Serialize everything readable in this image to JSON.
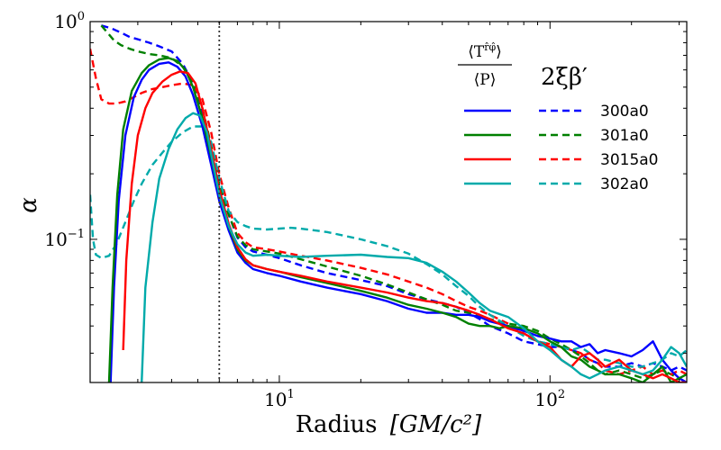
{
  "chart_data": {
    "type": "line",
    "title": "",
    "xlabel": "Radius",
    "xlabel_units": "[GM/c²]",
    "ylabel": "α",
    "xscale": "log",
    "yscale": "log",
    "xlim": [
      2.0,
      320
    ],
    "ylim": [
      0.022,
      1.0
    ],
    "x_ticks": [
      {
        "value": 10,
        "base": "10",
        "exp": "1"
      },
      {
        "value": 100,
        "base": "10",
        "exp": "2"
      }
    ],
    "y_ticks": [
      {
        "value": 0.1,
        "base": "10",
        "exp": "−1"
      },
      {
        "value": 1.0,
        "base": "10",
        "exp": "0"
      }
    ],
    "vline": {
      "x": 6.0,
      "style": "dotted",
      "color": "#333333"
    },
    "legend": {
      "position": "top-right",
      "solid_header": "⟨T^{r̂φ̂}⟩ / ⟨P⟩",
      "solid_header_num": "⟨T",
      "solid_header_sup": "r̂φ̂",
      "solid_header_close": "⟩",
      "solid_header_den": "⟨P⟩",
      "dashed_header": "2ξβ′",
      "entries": [
        "300a0",
        "301a0",
        "3015a0",
        "302a0"
      ]
    },
    "series": [
      {
        "name": "300a0 solid",
        "run": "300a0",
        "style": "solid",
        "color": "#0000ff",
        "x": [
          2.38,
          2.45,
          2.55,
          2.7,
          2.9,
          3.1,
          3.3,
          3.6,
          3.9,
          4.2,
          4.5,
          4.8,
          5.2,
          5.6,
          6.0,
          6.5,
          7.0,
          7.5,
          8.0,
          9,
          10,
          12,
          15,
          20,
          25,
          30,
          35,
          40,
          45,
          50,
          55,
          60,
          70,
          80,
          90,
          100,
          110,
          120,
          130,
          140,
          150,
          160,
          180,
          200,
          220,
          240,
          260,
          280,
          300,
          320
        ],
        "y": [
          0.022,
          0.06,
          0.15,
          0.3,
          0.45,
          0.54,
          0.6,
          0.64,
          0.65,
          0.62,
          0.56,
          0.46,
          0.33,
          0.22,
          0.15,
          0.11,
          0.087,
          0.078,
          0.073,
          0.07,
          0.068,
          0.064,
          0.06,
          0.056,
          0.052,
          0.048,
          0.046,
          0.046,
          0.045,
          0.045,
          0.044,
          0.042,
          0.04,
          0.038,
          0.036,
          0.035,
          0.034,
          0.034,
          0.032,
          0.033,
          0.03,
          0.031,
          0.03,
          0.029,
          0.031,
          0.034,
          0.028,
          0.025,
          0.023,
          0.022
        ]
      },
      {
        "name": "301a0 solid",
        "run": "301a0",
        "style": "solid",
        "color": "#008000",
        "x": [
          2.35,
          2.42,
          2.52,
          2.65,
          2.85,
          3.1,
          3.3,
          3.6,
          3.9,
          4.2,
          4.5,
          4.8,
          5.2,
          5.6,
          6.0,
          6.5,
          7.0,
          7.5,
          8.0,
          9,
          10,
          12,
          15,
          20,
          25,
          30,
          35,
          40,
          45,
          50,
          55,
          60,
          65,
          70,
          80,
          90,
          100,
          110,
          120,
          130,
          140,
          150,
          160,
          180,
          200,
          220,
          240,
          260,
          280,
          300,
          320
        ],
        "y": [
          0.022,
          0.06,
          0.16,
          0.32,
          0.48,
          0.58,
          0.63,
          0.67,
          0.68,
          0.66,
          0.6,
          0.5,
          0.36,
          0.24,
          0.16,
          0.115,
          0.09,
          0.08,
          0.076,
          0.073,
          0.071,
          0.067,
          0.063,
          0.058,
          0.054,
          0.05,
          0.048,
          0.046,
          0.044,
          0.041,
          0.04,
          0.04,
          0.039,
          0.04,
          0.039,
          0.037,
          0.034,
          0.032,
          0.029,
          0.028,
          0.026,
          0.025,
          0.024,
          0.024,
          0.023,
          0.022,
          0.024,
          0.026,
          0.022,
          0.023,
          0.024
        ]
      },
      {
        "name": "3015a0 solid",
        "run": "3015a0",
        "style": "solid",
        "color": "#ff0000",
        "x": [
          2.65,
          2.72,
          2.85,
          3.0,
          3.2,
          3.4,
          3.7,
          4.0,
          4.3,
          4.6,
          4.9,
          5.2,
          5.6,
          6.0,
          6.5,
          7.0,
          7.5,
          8.0,
          9,
          10,
          12,
          15,
          20,
          25,
          30,
          35,
          40,
          45,
          50,
          55,
          60,
          70,
          80,
          90,
          100,
          110,
          120,
          130,
          140,
          150,
          160,
          180,
          200,
          220,
          240,
          260,
          280,
          300,
          320
        ],
        "y": [
          0.031,
          0.08,
          0.18,
          0.3,
          0.4,
          0.47,
          0.53,
          0.57,
          0.59,
          0.58,
          0.52,
          0.4,
          0.26,
          0.17,
          0.118,
          0.092,
          0.081,
          0.076,
          0.073,
          0.071,
          0.068,
          0.064,
          0.06,
          0.057,
          0.054,
          0.052,
          0.051,
          0.049,
          0.047,
          0.045,
          0.043,
          0.039,
          0.037,
          0.034,
          0.032,
          0.028,
          0.026,
          0.029,
          0.03,
          0.028,
          0.026,
          0.028,
          0.025,
          0.024,
          0.023,
          0.024,
          0.023,
          0.022,
          0.022
        ]
      },
      {
        "name": "302a0 solid",
        "run": "302a0",
        "style": "solid",
        "color": "#00aaaa",
        "x": [
          3.1,
          3.2,
          3.4,
          3.6,
          3.9,
          4.2,
          4.5,
          4.8,
          5.1,
          5.4,
          5.7,
          6.0,
          6.5,
          7.0,
          7.5,
          8.0,
          9,
          10,
          12,
          15,
          20,
          25,
          30,
          35,
          40,
          45,
          50,
          55,
          60,
          70,
          80,
          90,
          100,
          110,
          120,
          130,
          140,
          150,
          160,
          180,
          200,
          220,
          240,
          260,
          280,
          300,
          320
        ],
        "y": [
          0.022,
          0.06,
          0.12,
          0.19,
          0.26,
          0.32,
          0.36,
          0.38,
          0.37,
          0.31,
          0.22,
          0.16,
          0.115,
          0.095,
          0.087,
          0.084,
          0.085,
          0.084,
          0.083,
          0.084,
          0.085,
          0.083,
          0.082,
          0.078,
          0.071,
          0.064,
          0.057,
          0.051,
          0.047,
          0.044,
          0.039,
          0.034,
          0.031,
          0.028,
          0.026,
          0.024,
          0.023,
          0.024,
          0.025,
          0.026,
          0.025,
          0.024,
          0.025,
          0.028,
          0.032,
          0.03,
          0.026
        ]
      },
      {
        "name": "300a0 dashed",
        "run": "300a0",
        "style": "dashed",
        "color": "#0000ff",
        "x": [
          2.2,
          2.4,
          2.6,
          2.8,
          3.0,
          3.3,
          3.6,
          4.0,
          4.4,
          4.8,
          5.2,
          5.6,
          6.0,
          6.5,
          7.0,
          7.5,
          8.0,
          9,
          10,
          12,
          15,
          20,
          25,
          30,
          35,
          40,
          45,
          50,
          55,
          60,
          70,
          80,
          90,
          100,
          110,
          120,
          130,
          140,
          150,
          160,
          180,
          200,
          220,
          240,
          260,
          280,
          300,
          320
        ],
        "y": [
          0.96,
          0.93,
          0.89,
          0.85,
          0.83,
          0.8,
          0.77,
          0.73,
          0.64,
          0.52,
          0.38,
          0.26,
          0.18,
          0.13,
          0.102,
          0.092,
          0.088,
          0.085,
          0.082,
          0.076,
          0.07,
          0.065,
          0.061,
          0.056,
          0.053,
          0.051,
          0.049,
          0.046,
          0.043,
          0.04,
          0.037,
          0.034,
          0.033,
          0.032,
          0.032,
          0.031,
          0.03,
          0.028,
          0.027,
          0.026,
          0.026,
          0.027,
          0.026,
          0.027,
          0.026,
          0.025,
          0.026,
          0.025
        ]
      },
      {
        "name": "301a0 dashed",
        "run": "301a0",
        "style": "dashed",
        "color": "#008000",
        "x": [
          2.2,
          2.3,
          2.45,
          2.6,
          2.8,
          3.0,
          3.3,
          3.6,
          4.0,
          4.4,
          4.8,
          5.2,
          5.6,
          6.0,
          6.5,
          7.0,
          7.5,
          8.0,
          9,
          10,
          12,
          15,
          20,
          25,
          30,
          35,
          40,
          45,
          50,
          55,
          60,
          70,
          80,
          90,
          100,
          110,
          120,
          130,
          140,
          150,
          160,
          180,
          200,
          220,
          240,
          260,
          280,
          300,
          320
        ],
        "y": [
          0.96,
          0.9,
          0.82,
          0.78,
          0.75,
          0.73,
          0.71,
          0.7,
          0.68,
          0.62,
          0.52,
          0.4,
          0.27,
          0.18,
          0.13,
          0.103,
          0.094,
          0.09,
          0.088,
          0.086,
          0.081,
          0.075,
          0.068,
          0.062,
          0.057,
          0.053,
          0.05,
          0.047,
          0.046,
          0.044,
          0.043,
          0.041,
          0.04,
          0.038,
          0.035,
          0.033,
          0.031,
          0.029,
          0.027,
          0.025,
          0.024,
          0.025,
          0.024,
          0.023,
          0.024,
          0.025,
          0.024,
          0.023,
          0.022
        ]
      },
      {
        "name": "3015a0 dashed",
        "run": "3015a0",
        "style": "dashed",
        "color": "#ff0000",
        "x": [
          2.0,
          2.1,
          2.2,
          2.35,
          2.5,
          2.7,
          2.9,
          3.1,
          3.4,
          3.7,
          4.0,
          4.4,
          4.8,
          5.2,
          5.6,
          6.0,
          6.5,
          7.0,
          7.5,
          8.0,
          9,
          10,
          12,
          15,
          20,
          25,
          30,
          35,
          40,
          45,
          50,
          55,
          60,
          70,
          80,
          90,
          100,
          110,
          120,
          130,
          140,
          150,
          160,
          180,
          200,
          220,
          240,
          260,
          280,
          300,
          320
        ],
        "y": [
          0.75,
          0.55,
          0.44,
          0.42,
          0.42,
          0.43,
          0.45,
          0.47,
          0.49,
          0.5,
          0.51,
          0.52,
          0.51,
          0.44,
          0.31,
          0.2,
          0.14,
          0.107,
          0.097,
          0.092,
          0.09,
          0.088,
          0.084,
          0.08,
          0.074,
          0.069,
          0.064,
          0.06,
          0.056,
          0.052,
          0.049,
          0.047,
          0.045,
          0.041,
          0.037,
          0.034,
          0.033,
          0.032,
          0.031,
          0.03,
          0.028,
          0.027,
          0.025,
          0.024,
          0.025,
          0.026,
          0.024,
          0.025,
          0.024,
          0.025,
          0.024
        ]
      },
      {
        "name": "302a0 dashed",
        "run": "302a0",
        "style": "dashed",
        "color": "#00aaaa",
        "x": [
          2.0,
          2.05,
          2.1,
          2.2,
          2.35,
          2.5,
          2.7,
          2.9,
          3.1,
          3.4,
          3.7,
          4.0,
          4.4,
          4.8,
          5.2,
          5.6,
          6.0,
          6.5,
          7.0,
          7.5,
          8.0,
          9,
          10,
          11,
          12,
          15,
          20,
          25,
          30,
          35,
          40,
          45,
          50,
          55,
          60,
          70,
          80,
          90,
          100,
          110,
          120,
          130,
          140,
          150,
          160,
          180,
          200,
          220,
          240,
          260,
          280,
          300,
          320
        ],
        "y": [
          0.16,
          0.1,
          0.085,
          0.082,
          0.084,
          0.095,
          0.12,
          0.15,
          0.18,
          0.22,
          0.25,
          0.28,
          0.31,
          0.33,
          0.33,
          0.28,
          0.19,
          0.135,
          0.12,
          0.115,
          0.112,
          0.111,
          0.112,
          0.113,
          0.112,
          0.108,
          0.1,
          0.093,
          0.086,
          0.077,
          0.069,
          0.061,
          0.055,
          0.049,
          0.045,
          0.04,
          0.036,
          0.034,
          0.033,
          0.032,
          0.031,
          0.032,
          0.03,
          0.028,
          0.028,
          0.027,
          0.026,
          0.026,
          0.027,
          0.028,
          0.03,
          0.029,
          0.031
        ]
      }
    ]
  }
}
